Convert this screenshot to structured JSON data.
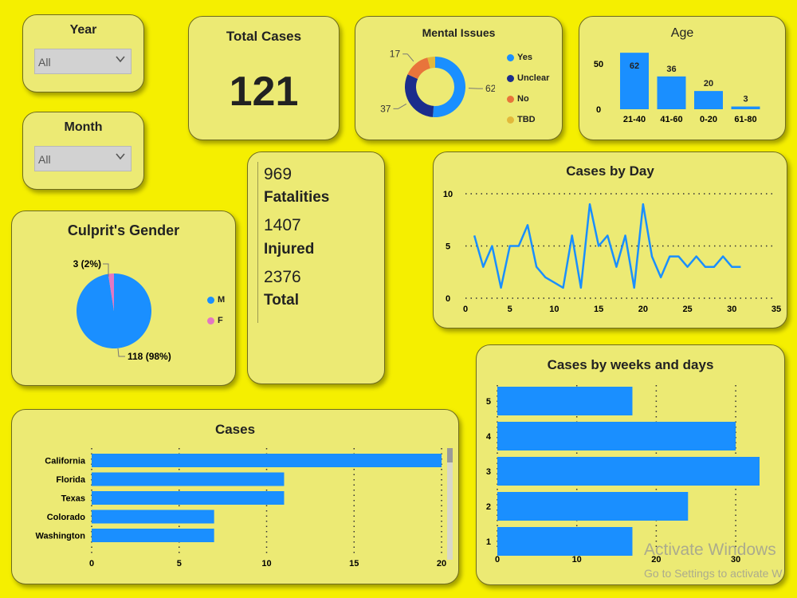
{
  "filters": {
    "year": {
      "title": "Year",
      "value": "All"
    },
    "month": {
      "title": "Month",
      "value": "All"
    }
  },
  "total_cases": {
    "title": "Total Cases",
    "value": "121"
  },
  "stats": {
    "fatalities_value": "969",
    "fatalities_label": "Fatalities",
    "injured_value": "1407",
    "injured_label": "Injured",
    "total_value": "2376",
    "total_label": "Total"
  },
  "watermark": {
    "line1": "Activate Windows",
    "line2": "Go to Settings to activate W"
  },
  "colors": {
    "primary": "#1a8fff",
    "navy": "#1b2d8c",
    "orange": "#e8743b",
    "gold": "#e2b93b",
    "pink": "#e377c2",
    "panel": "#ecea74",
    "background": "#f5ef00"
  },
  "chart_data": [
    {
      "id": "mental",
      "type": "pie",
      "title": "Mental Issues",
      "donut": true,
      "series": [
        {
          "name": "Yes",
          "value": 62,
          "color": "#1a8fff"
        },
        {
          "name": "Unclear",
          "value": 37,
          "color": "#1b2d8c"
        },
        {
          "name": "No",
          "value": 17,
          "color": "#e8743b"
        },
        {
          "name": "TBD",
          "value": 5,
          "color": "#e2b93b"
        }
      ],
      "data_labels": [
        "62",
        "37",
        "17",
        ""
      ]
    },
    {
      "id": "age",
      "type": "bar",
      "title": "Age",
      "categories": [
        "21-40",
        "41-60",
        "0-20",
        "61-80"
      ],
      "values": [
        62,
        36,
        20,
        3
      ],
      "ylim": [
        0,
        70
      ],
      "yticks": [
        0,
        50
      ],
      "grid": false
    },
    {
      "id": "gender",
      "type": "pie",
      "title": "Culprit's Gender",
      "series": [
        {
          "name": "M",
          "value": 118,
          "color": "#1a8fff"
        },
        {
          "name": "F",
          "value": 3,
          "color": "#e377c2"
        }
      ],
      "data_labels": [
        "118 (98%)",
        "3 (2%)"
      ]
    },
    {
      "id": "day",
      "type": "line",
      "title": "Cases by Day",
      "x": [
        1,
        2,
        3,
        4,
        5,
        6,
        7,
        8,
        9,
        10,
        11,
        12,
        13,
        14,
        15,
        16,
        17,
        18,
        19,
        20,
        21,
        22,
        23,
        24,
        25,
        26,
        27,
        28,
        29,
        30,
        31
      ],
      "y": [
        6,
        3,
        5,
        1,
        5,
        5,
        7,
        3,
        2,
        1.5,
        1,
        6,
        1,
        9,
        5,
        6,
        3,
        6,
        1,
        9,
        4,
        2,
        4,
        4,
        3,
        4,
        3,
        3,
        4,
        3,
        3
      ],
      "xlim": [
        0,
        35
      ],
      "ylim": [
        0,
        10
      ],
      "xticks": [
        0,
        5,
        10,
        15,
        20,
        25,
        30,
        35
      ],
      "yticks": [
        0,
        5,
        10
      ],
      "grid": true
    },
    {
      "id": "weeks",
      "type": "bar",
      "orientation": "horizontal",
      "title": "Cases by weeks and days",
      "categories": [
        "5",
        "4",
        "3",
        "2",
        "1"
      ],
      "values": [
        17,
        30,
        33,
        24,
        17
      ],
      "xlim": [
        0,
        33
      ],
      "xticks": [
        0,
        10,
        20,
        30
      ],
      "grid": true
    },
    {
      "id": "states",
      "type": "bar",
      "orientation": "horizontal",
      "title": "Cases",
      "categories": [
        "California",
        "Florida",
        "Texas",
        "Colorado",
        "Washington"
      ],
      "values": [
        20,
        11,
        11,
        7,
        7
      ],
      "xlim": [
        0,
        20.5
      ],
      "xticks": [
        0,
        5,
        10,
        15,
        20
      ],
      "grid": true
    }
  ]
}
